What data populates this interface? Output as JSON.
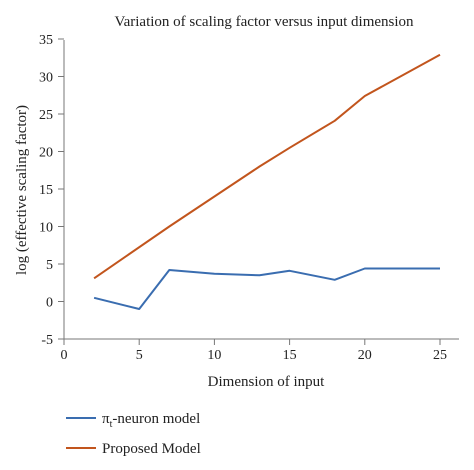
{
  "chart_data": {
    "type": "line",
    "title": "Variation of scaling factor versus input dimension",
    "xlabel": "Dimension of input",
    "ylabel": "log (effective scaling factor)",
    "xlim": [
      0,
      25
    ],
    "ylim": [
      -5,
      35
    ],
    "xticks": [
      0,
      5,
      10,
      15,
      20,
      25
    ],
    "yticks": [
      -5,
      0,
      5,
      10,
      15,
      20,
      25,
      30,
      35
    ],
    "grid": false,
    "legend_position": "bottom",
    "series": [
      {
        "name": "πt-neuron model",
        "name_base": "π",
        "name_sub": "t",
        "name_rest": "-neuron model",
        "color": "#3a6db0",
        "x": [
          2,
          5,
          7,
          10,
          13,
          15,
          18,
          20,
          25
        ],
        "y": [
          0.5,
          -1.0,
          4.2,
          3.7,
          3.5,
          4.1,
          2.9,
          4.4,
          4.4
        ]
      },
      {
        "name": "Proposed Model",
        "color": "#c2551d",
        "x": [
          2,
          7,
          10,
          13,
          15,
          18,
          20,
          25
        ],
        "y": [
          3.1,
          10.0,
          14.0,
          18.0,
          20.5,
          24.1,
          27.4,
          32.9
        ]
      }
    ]
  }
}
